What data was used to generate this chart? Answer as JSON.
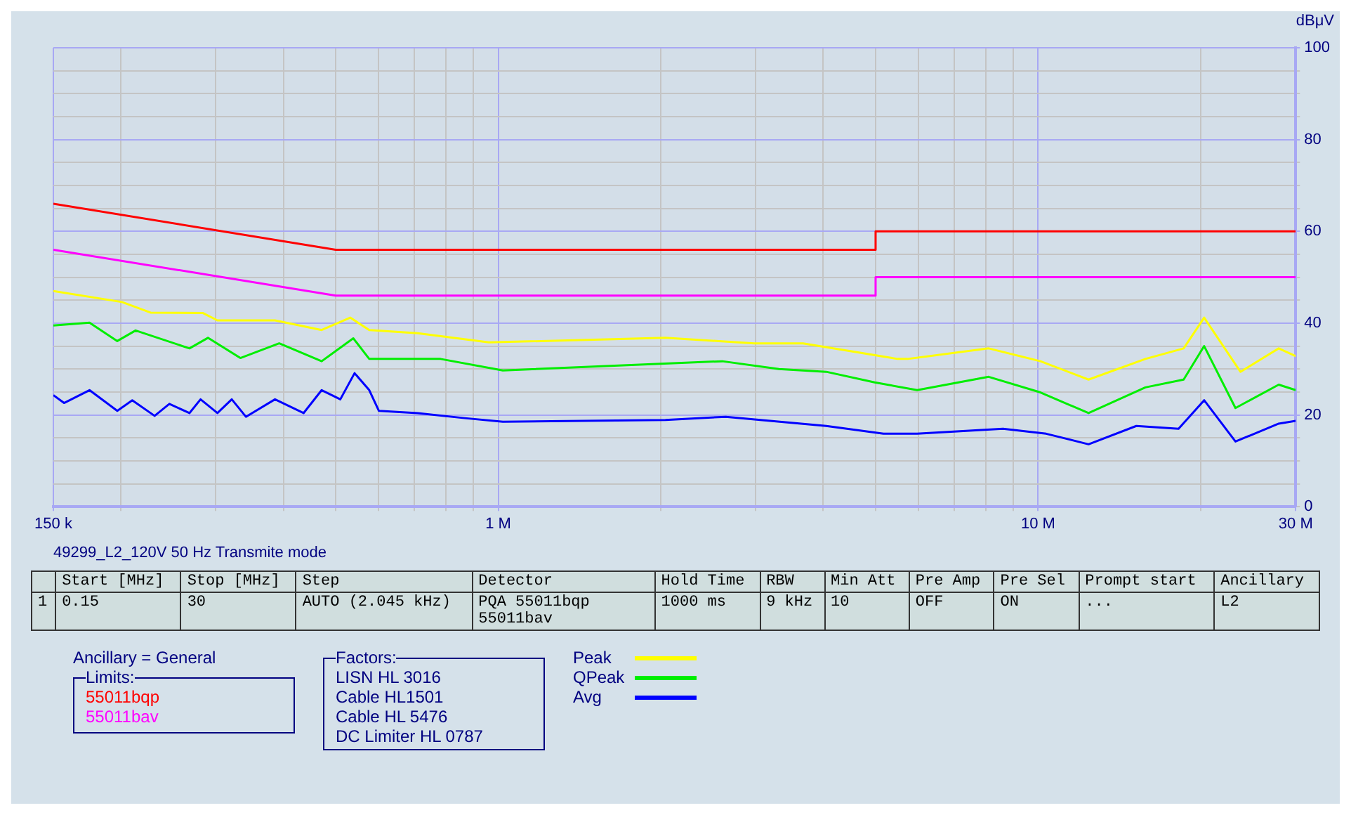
{
  "chart_data": {
    "type": "line",
    "title": "49299_L2_120V 50 Hz Transmite mode",
    "ylabel": "dBμV",
    "xlim": [
      0.15,
      30
    ],
    "ylim": [
      0,
      100
    ],
    "log": "x",
    "xticks": [
      {
        "value": 0.15,
        "label": "150 k"
      },
      {
        "value": 0.2,
        "label": null
      },
      {
        "value": 0.3,
        "label": null
      },
      {
        "value": 0.4,
        "label": null
      },
      {
        "value": 0.5,
        "label": null
      },
      {
        "value": 0.6,
        "label": null
      },
      {
        "value": 0.7,
        "label": null
      },
      {
        "value": 0.8,
        "label": null
      },
      {
        "value": 0.9,
        "label": null
      },
      {
        "value": 1,
        "label": "1 M"
      },
      {
        "value": 2,
        "label": null
      },
      {
        "value": 3,
        "label": null
      },
      {
        "value": 4,
        "label": null
      },
      {
        "value": 5,
        "label": null
      },
      {
        "value": 6,
        "label": null
      },
      {
        "value": 7,
        "label": null
      },
      {
        "value": 8,
        "label": null
      },
      {
        "value": 9,
        "label": null
      },
      {
        "value": 10,
        "label": "10 M"
      },
      {
        "value": 20,
        "label": null
      },
      {
        "value": 30,
        "label": "30 M"
      }
    ],
    "yticks": [
      0,
      {
        "value": 5,
        "label": null
      },
      {
        "value": 10,
        "label": null
      },
      {
        "value": 15,
        "label": null
      },
      20,
      {
        "value": 25,
        "label": null
      },
      {
        "value": 30,
        "label": null
      },
      {
        "value": 35,
        "label": null
      },
      40,
      {
        "value": 45,
        "label": null
      },
      {
        "value": 50,
        "label": null
      },
      {
        "value": 55,
        "label": null
      },
      60,
      {
        "value": 65,
        "label": null
      },
      {
        "value": 70,
        "label": null
      },
      {
        "value": 75,
        "label": null
      },
      80,
      {
        "value": 85,
        "label": null
      },
      {
        "value": 90,
        "label": null
      },
      {
        "value": 95,
        "label": null
      },
      100
    ],
    "grid": true,
    "legend": "bottom left",
    "marker": "none",
    "line_style": "solid",
    "series": [
      {
        "name": "Peak",
        "color": "#ffff00",
        "x": [
          0.15,
          0.201,
          0.227,
          0.284,
          0.302,
          0.386,
          0.471,
          0.532,
          0.577,
          0.709,
          0.961,
          2.04,
          2.98,
          3.67,
          4.49,
          5.49,
          5.73,
          8.1,
          10.1,
          12.4,
          15.8,
          18.6,
          20.3,
          23.7,
          27.9,
          30
        ],
        "values": [
          47,
          44.6,
          42.3,
          42.2,
          40.6,
          40.6,
          38.5,
          41.2,
          38.5,
          37.8,
          35.8,
          36.8,
          35.6,
          35.6,
          33.9,
          32.2,
          32.2,
          34.5,
          31.7,
          27.7,
          32.2,
          34.5,
          41.2,
          29.4,
          34.5,
          32.8
        ]
      },
      {
        "name": "QPeak",
        "color": "#00ee00",
        "x": [
          0.15,
          0.175,
          0.197,
          0.213,
          0.268,
          0.29,
          0.333,
          0.393,
          0.471,
          0.539,
          0.577,
          0.782,
          1.02,
          2.6,
          3.31,
          4.05,
          4.98,
          5.97,
          8.1,
          10.1,
          12.4,
          15.8,
          18.6,
          20.3,
          23.2,
          27.9,
          30
        ],
        "values": [
          39.5,
          40.1,
          36.1,
          38.4,
          34.5,
          36.8,
          32.4,
          35.6,
          31.7,
          36.7,
          32.2,
          32.2,
          29.7,
          31.7,
          30,
          29.4,
          27.1,
          25.4,
          28.3,
          24.9,
          20.4,
          26,
          27.7,
          35,
          21.5,
          26.6,
          25.4
        ]
      },
      {
        "name": "Avg",
        "color": "#0000ff",
        "x": [
          0.15,
          0.157,
          0.175,
          0.197,
          0.21,
          0.231,
          0.246,
          0.268,
          0.281,
          0.302,
          0.321,
          0.341,
          0.386,
          0.436,
          0.471,
          0.51,
          0.542,
          0.577,
          0.601,
          0.709,
          0.867,
          1.02,
          2.04,
          2.64,
          3.06,
          4.05,
          5.17,
          5.97,
          8.61,
          10.35,
          12.4,
          15.2,
          18.2,
          20.3,
          23.2,
          27.9,
          30
        ],
        "values": [
          24.3,
          22.6,
          25.4,
          20.9,
          23.2,
          19.8,
          22.4,
          20.4,
          23.4,
          20.4,
          23.4,
          19.6,
          23.4,
          20.4,
          25.4,
          23.4,
          29.1,
          25.4,
          20.9,
          20.4,
          19.3,
          18.5,
          18.9,
          19.6,
          18.9,
          17.6,
          15.9,
          15.9,
          17,
          15.9,
          13.6,
          17.6,
          17,
          23.2,
          14.2,
          18.1,
          18.7
        ]
      },
      {
        "name": "55011bqp",
        "color": "#ff0000",
        "x": [
          0.15,
          0.5,
          5,
          5,
          30
        ],
        "values": [
          66,
          56,
          56,
          60,
          60
        ]
      },
      {
        "name": "55011bav",
        "color": "#ff00ff",
        "x": [
          0.15,
          0.5,
          5,
          5,
          30
        ],
        "values": [
          56,
          46,
          46,
          50,
          50
        ]
      }
    ],
    "annotations": [
      "Start [MHz]",
      "Stop [MHz]",
      "Step",
      "Detector",
      "Hold Time",
      "RBW",
      "Min Att",
      "Pre Amp",
      "Pre Sel",
      "Prompt start",
      "Ancillary",
      "1",
      "0.15",
      "30",
      "AUTO (2.045 kHz)",
      "PQA 55011bqp 55011bav",
      "1000 ms",
      "9 kHz",
      "10",
      "OFF",
      "ON",
      "...",
      "L2",
      "Ancillary = General",
      "Limits:",
      "Factors:",
      "LISN HL 3016",
      "Cable HL1501",
      "Cable HL 5476",
      "DC Limiter HL 0787"
    ]
  }
}
